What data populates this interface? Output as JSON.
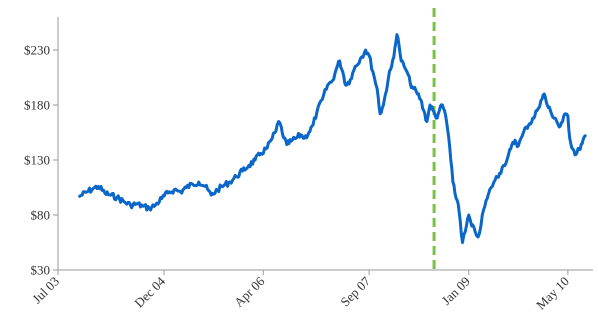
{
  "chart_data": {
    "type": "line",
    "title": "",
    "xlabel": "",
    "ylabel": "",
    "grid": false,
    "legend": "none",
    "ylim": [
      30,
      260
    ],
    "xlim": [
      "2003-07-01",
      "2010-09-01"
    ],
    "y_ticks": [
      30,
      80,
      130,
      180,
      230
    ],
    "y_tick_labels": [
      "$30",
      "$80",
      "$130",
      "$180",
      "$230"
    ],
    "x_ticks": [
      "2003-07-01",
      "2004-12-01",
      "2006-04-01",
      "2007-09-01",
      "2009-01-01",
      "2010-05-01"
    ],
    "x_tick_labels": [
      "Jul 03",
      "Dec 04",
      "Apr 06",
      "Sep 07",
      "Jan 09",
      "May 10"
    ],
    "series": [
      {
        "color": "#0a66c8",
        "points": [
          [
            "2003-10-15",
            97
          ],
          [
            "2003-11-20",
            101
          ],
          [
            "2003-12-20",
            104
          ],
          [
            "2004-01-15",
            106
          ],
          [
            "2004-02-15",
            100
          ],
          [
            "2004-03-15",
            98
          ],
          [
            "2004-04-15",
            96
          ],
          [
            "2004-05-20",
            92
          ],
          [
            "2004-06-20",
            89
          ],
          [
            "2004-07-20",
            90
          ],
          [
            "2004-08-20",
            88
          ],
          [
            "2004-09-20",
            86
          ],
          [
            "2004-10-20",
            89
          ],
          [
            "2004-11-20",
            95
          ],
          [
            "2004-12-20",
            100
          ],
          [
            "2005-01-20",
            103
          ],
          [
            "2005-02-20",
            101
          ],
          [
            "2005-03-20",
            105
          ],
          [
            "2005-04-20",
            108
          ],
          [
            "2005-05-20",
            110
          ],
          [
            "2005-06-20",
            106
          ],
          [
            "2005-07-20",
            98
          ],
          [
            "2005-08-20",
            103
          ],
          [
            "2005-09-20",
            107
          ],
          [
            "2005-10-20",
            110
          ],
          [
            "2005-11-20",
            115
          ],
          [
            "2005-12-20",
            120
          ],
          [
            "2006-01-20",
            125
          ],
          [
            "2006-02-20",
            130
          ],
          [
            "2006-03-20",
            136
          ],
          [
            "2006-04-20",
            141
          ],
          [
            "2006-05-15",
            150
          ],
          [
            "2006-06-01",
            156
          ],
          [
            "2006-06-15",
            165
          ],
          [
            "2006-06-28",
            160
          ],
          [
            "2006-07-10",
            150
          ],
          [
            "2006-07-25",
            144
          ],
          [
            "2006-08-15",
            147
          ],
          [
            "2006-09-10",
            150
          ],
          [
            "2006-10-01",
            153
          ],
          [
            "2006-10-20",
            150
          ],
          [
            "2006-11-10",
            155
          ],
          [
            "2006-12-01",
            162
          ],
          [
            "2006-12-20",
            174
          ],
          [
            "2007-01-15",
            185
          ],
          [
            "2007-02-10",
            198
          ],
          [
            "2007-03-05",
            202
          ],
          [
            "2007-03-25",
            213
          ],
          [
            "2007-04-10",
            220
          ],
          [
            "2007-04-25",
            210
          ],
          [
            "2007-05-10",
            198
          ],
          [
            "2007-06-01",
            203
          ],
          [
            "2007-06-25",
            215
          ],
          [
            "2007-07-20",
            222
          ],
          [
            "2007-08-15",
            230
          ],
          [
            "2007-09-01",
            225
          ],
          [
            "2007-09-20",
            210
          ],
          [
            "2007-10-10",
            195
          ],
          [
            "2007-10-25",
            172
          ],
          [
            "2007-11-10",
            180
          ],
          [
            "2007-11-20",
            190
          ],
          [
            "2007-12-05",
            205
          ],
          [
            "2007-12-20",
            215
          ],
          [
            "2008-01-05",
            232
          ],
          [
            "2008-01-15",
            244
          ],
          [
            "2008-01-25",
            235
          ],
          [
            "2008-02-05",
            220
          ],
          [
            "2008-02-20",
            215
          ],
          [
            "2008-03-05",
            210
          ],
          [
            "2008-03-20",
            200
          ],
          [
            "2008-04-05",
            195
          ],
          [
            "2008-04-25",
            190
          ],
          [
            "2008-05-10",
            185
          ],
          [
            "2008-05-25",
            175
          ],
          [
            "2008-06-10",
            165
          ],
          [
            "2008-06-25",
            180
          ],
          [
            "2008-07-10",
            175
          ],
          [
            "2008-07-25",
            168
          ],
          [
            "2008-08-10",
            175
          ],
          [
            "2008-08-25",
            180
          ],
          [
            "2008-09-10",
            170
          ],
          [
            "2008-09-25",
            150
          ],
          [
            "2008-10-05",
            130
          ],
          [
            "2008-10-15",
            110
          ],
          [
            "2008-10-25",
            100
          ],
          [
            "2008-11-10",
            90
          ],
          [
            "2008-11-20",
            75
          ],
          [
            "2008-12-01",
            55
          ],
          [
            "2008-12-15",
            65
          ],
          [
            "2009-01-01",
            80
          ],
          [
            "2009-01-15",
            70
          ],
          [
            "2009-02-01",
            65
          ],
          [
            "2009-02-15",
            60
          ],
          [
            "2009-03-01",
            70
          ],
          [
            "2009-03-15",
            85
          ],
          [
            "2009-04-01",
            95
          ],
          [
            "2009-04-20",
            105
          ],
          [
            "2009-05-10",
            112
          ],
          [
            "2009-06-01",
            118
          ],
          [
            "2009-06-20",
            125
          ],
          [
            "2009-07-10",
            132
          ],
          [
            "2009-07-25",
            140
          ],
          [
            "2009-08-15",
            148
          ],
          [
            "2009-09-01",
            143
          ],
          [
            "2009-09-20",
            152
          ],
          [
            "2009-10-10",
            160
          ],
          [
            "2009-10-25",
            163
          ],
          [
            "2009-11-15",
            168
          ],
          [
            "2009-12-01",
            175
          ],
          [
            "2009-12-20",
            184
          ],
          [
            "2010-01-05",
            190
          ],
          [
            "2010-01-20",
            180
          ],
          [
            "2010-02-10",
            172
          ],
          [
            "2010-03-01",
            168
          ],
          [
            "2010-03-20",
            160
          ],
          [
            "2010-04-05",
            165
          ],
          [
            "2010-04-20",
            172
          ],
          [
            "2010-05-01",
            170
          ],
          [
            "2010-05-10",
            150
          ],
          [
            "2010-05-25",
            140
          ],
          [
            "2010-06-10",
            135
          ],
          [
            "2010-06-25",
            140
          ],
          [
            "2010-07-10",
            145
          ],
          [
            "2010-07-25",
            152
          ]
        ]
      }
    ],
    "annotations": [
      {
        "type": "vline",
        "x": "2008-07-15",
        "color": "#7ac143",
        "style": "dashed"
      }
    ]
  }
}
